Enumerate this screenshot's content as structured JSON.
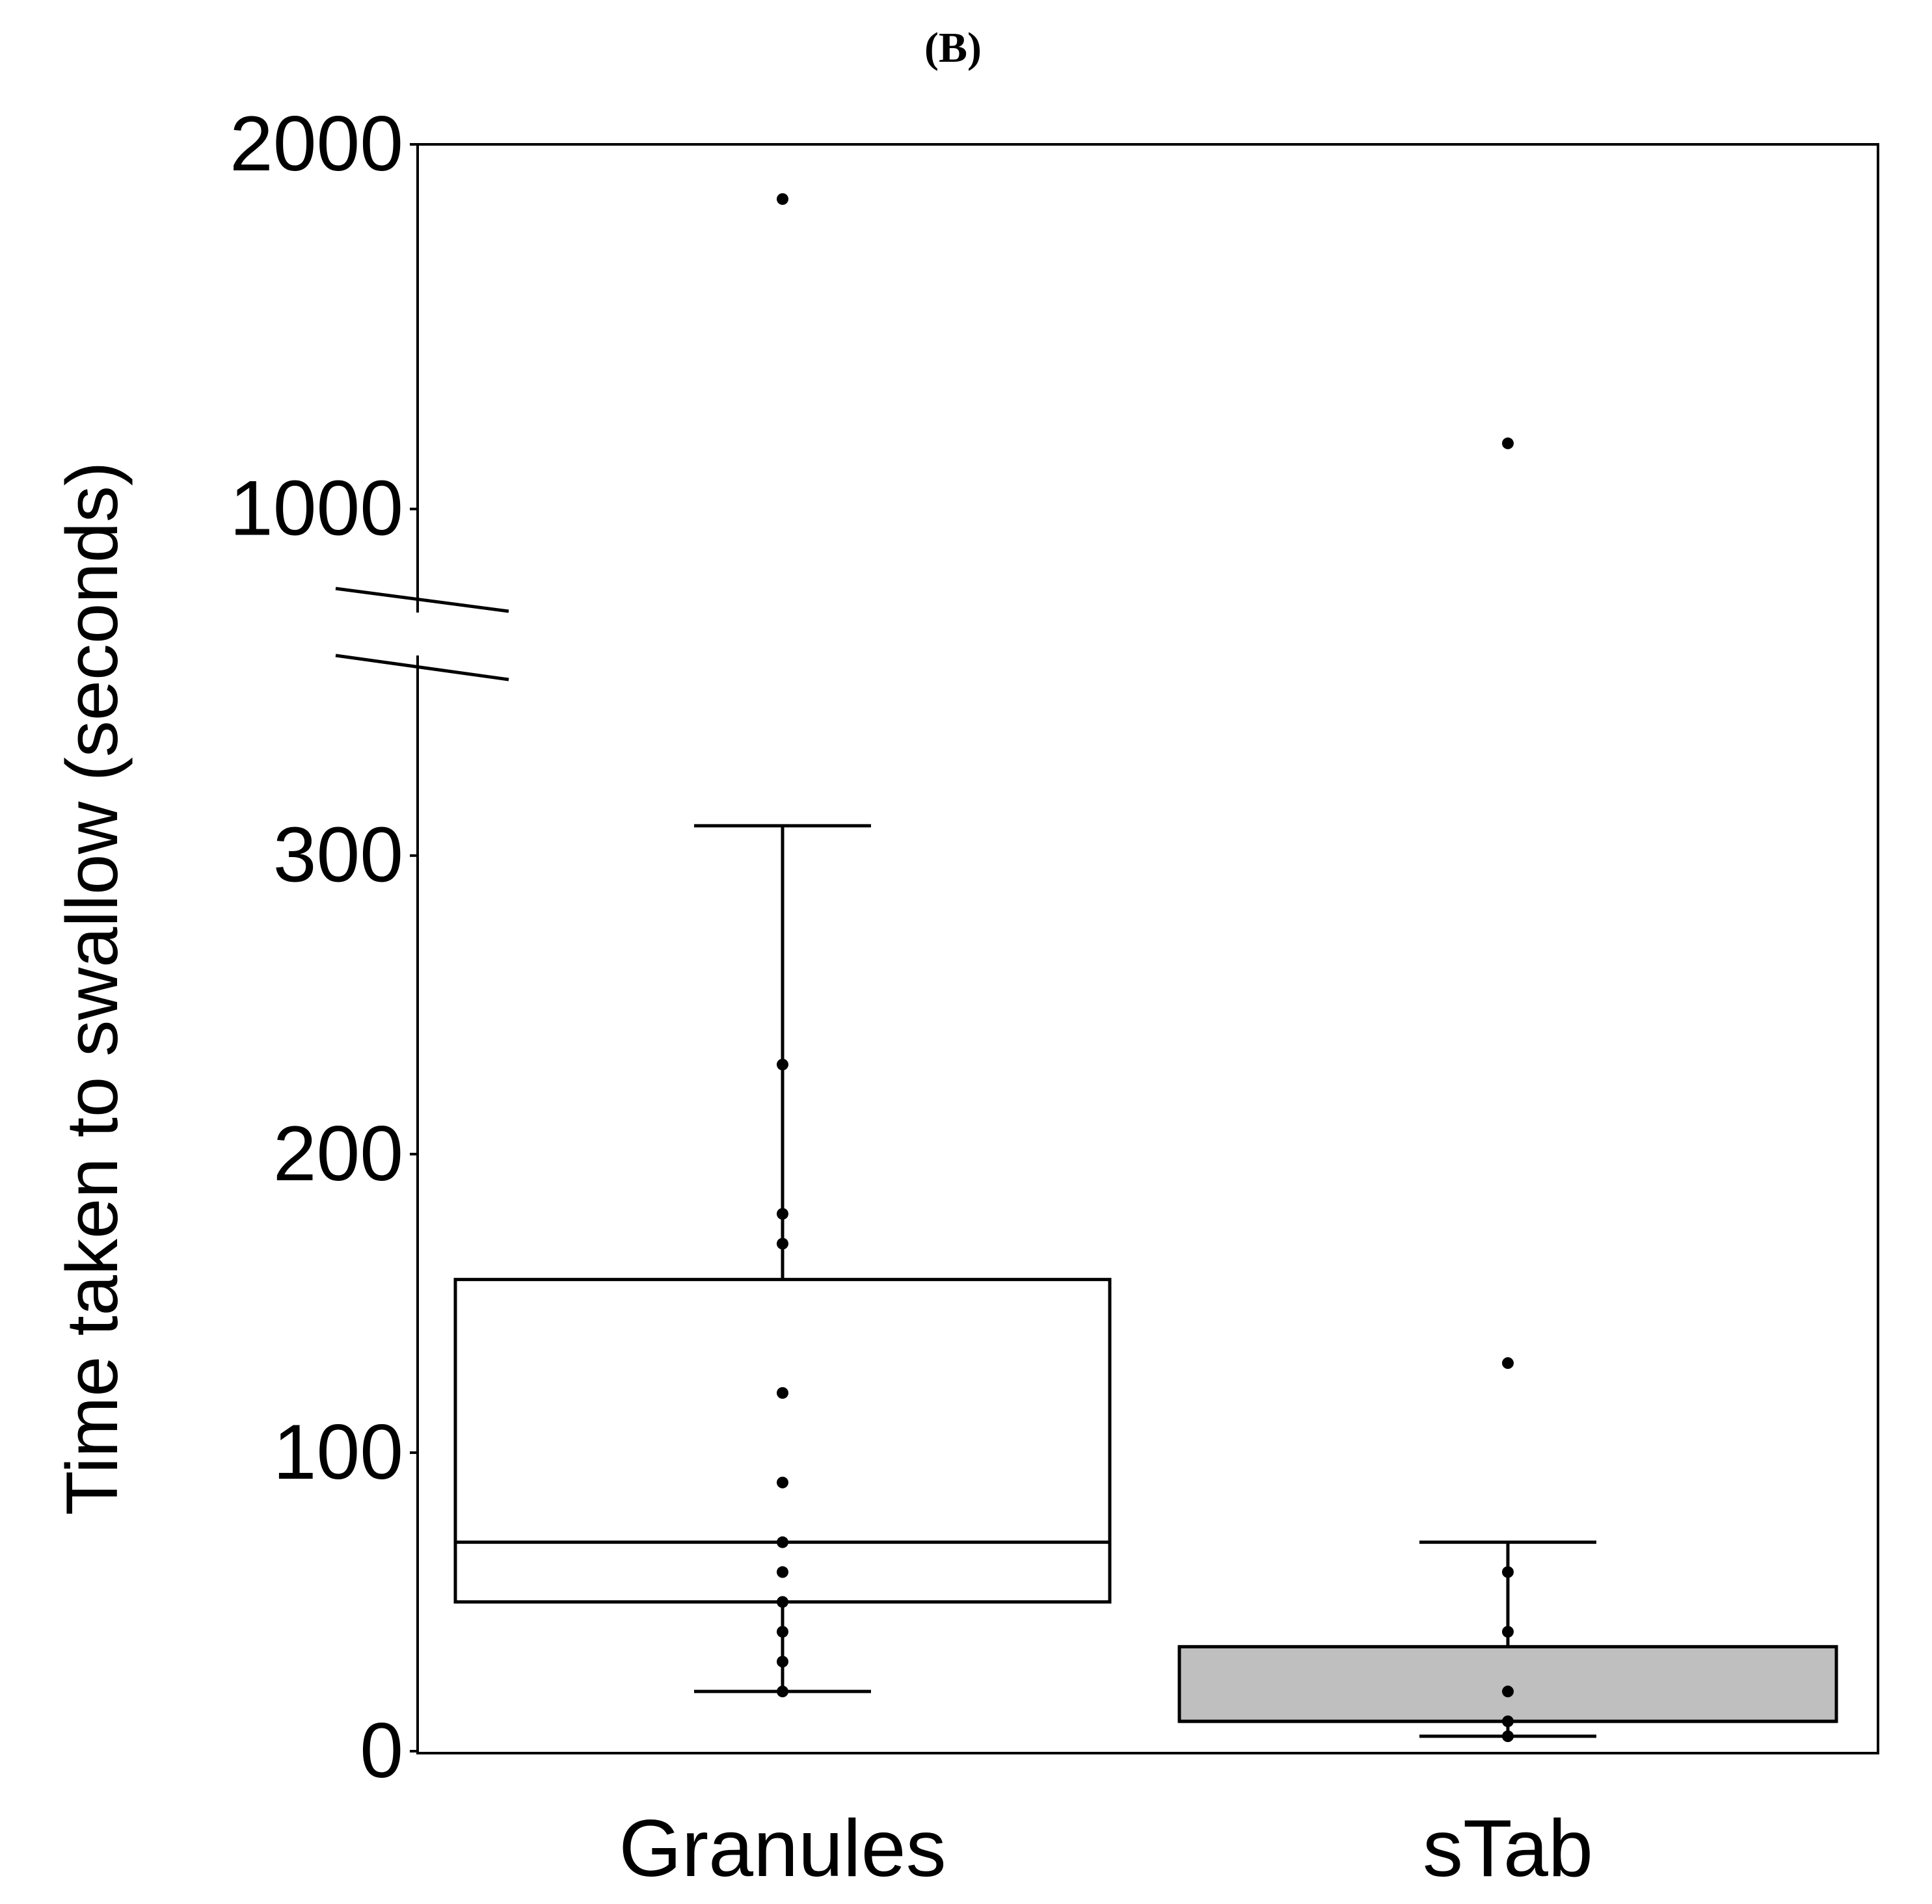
{
  "chart_data": {
    "type": "box",
    "panel_label": "(B)",
    "ylabel": "Time taken to swallow (seconds)",
    "xlabel": "",
    "categories": [
      "Granules",
      "sTab"
    ],
    "y_axis": {
      "broken": true,
      "lower_segment": {
        "ylim": [
          0,
          330
        ],
        "ticks": [
          0,
          100,
          200,
          300
        ]
      },
      "upper_segment": {
        "ylim": [
          600,
          2000
        ],
        "ticks": [
          1000,
          2000
        ]
      }
    },
    "boxes": [
      {
        "category": "Granules",
        "fill": "#ffffff",
        "whisker_low": 20,
        "q1": 50,
        "median": 70,
        "q3": 158,
        "whisker_high": 310,
        "points": [
          1850,
          230,
          180,
          170,
          120,
          90,
          70,
          60,
          50,
          40,
          30,
          20
        ],
        "outliers": [
          1850
        ]
      },
      {
        "category": "sTab",
        "fill": "#bfbfbf",
        "whisker_low": 5,
        "q1": 10,
        "median": 10,
        "q3": 35,
        "whisker_high": 70,
        "points": [
          1180,
          130,
          60,
          40,
          20,
          10,
          5
        ],
        "outliers": [
          1180,
          130
        ]
      }
    ],
    "grid": false,
    "legend": "none"
  }
}
